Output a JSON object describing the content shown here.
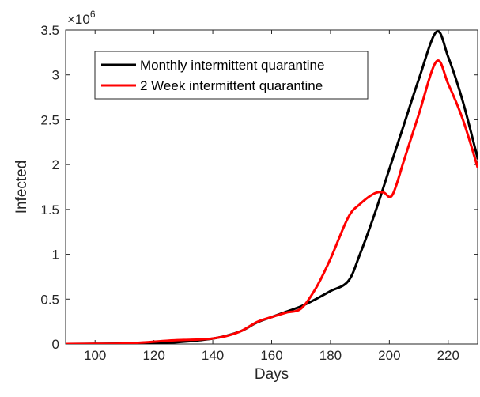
{
  "chart_data": {
    "type": "line",
    "xlabel": "Days",
    "ylabel": "Infected",
    "exponent_label": "×10",
    "exponent_power": "6",
    "xlim": [
      90,
      230
    ],
    "ylim": [
      0,
      3500000
    ],
    "xticks": [
      100,
      120,
      140,
      160,
      180,
      200,
      220
    ],
    "xtick_labels": [
      "100",
      "120",
      "140",
      "160",
      "180",
      "200",
      "220"
    ],
    "yticks": [
      0,
      500000,
      1000000,
      1500000,
      2000000,
      2500000,
      3000000,
      3500000
    ],
    "ytick_labels": [
      "0",
      "0.5",
      "1",
      "1.5",
      "2",
      "2.5",
      "3",
      "3.5"
    ],
    "grid": false,
    "legend_position": "top-left",
    "series": [
      {
        "name": "Monthly intermittent quarantine",
        "color": "#000000",
        "x": [
          90,
          100,
          110,
          120,
          125,
          130,
          135,
          140,
          145,
          150,
          155,
          160,
          165,
          170,
          175,
          180,
          186,
          190,
          195,
          200,
          205,
          210,
          216,
          220,
          225,
          230
        ],
        "y": [
          0,
          2000,
          4000,
          8000,
          14000,
          25000,
          40000,
          60000,
          95000,
          150000,
          240000,
          300000,
          360000,
          420000,
          500000,
          590000,
          700000,
          1000000,
          1450000,
          1950000,
          2450000,
          2950000,
          3480000,
          3200000,
          2700000,
          2070000
        ]
      },
      {
        "name": "2 Week intermittent quarantine",
        "color": "#ff0000",
        "x": [
          90,
          100,
          110,
          120,
          125,
          130,
          135,
          140,
          145,
          150,
          155,
          160,
          165,
          170,
          175,
          180,
          186,
          190,
          195,
          198,
          201,
          205,
          210,
          216,
          220,
          225,
          230
        ],
        "y": [
          0,
          2000,
          6000,
          25000,
          38000,
          45000,
          50000,
          62000,
          92000,
          150000,
          245000,
          300000,
          350000,
          395000,
          620000,
          950000,
          1410000,
          1560000,
          1680000,
          1690000,
          1660000,
          2050000,
          2560000,
          3150000,
          2900000,
          2500000,
          1970000
        ]
      }
    ]
  }
}
